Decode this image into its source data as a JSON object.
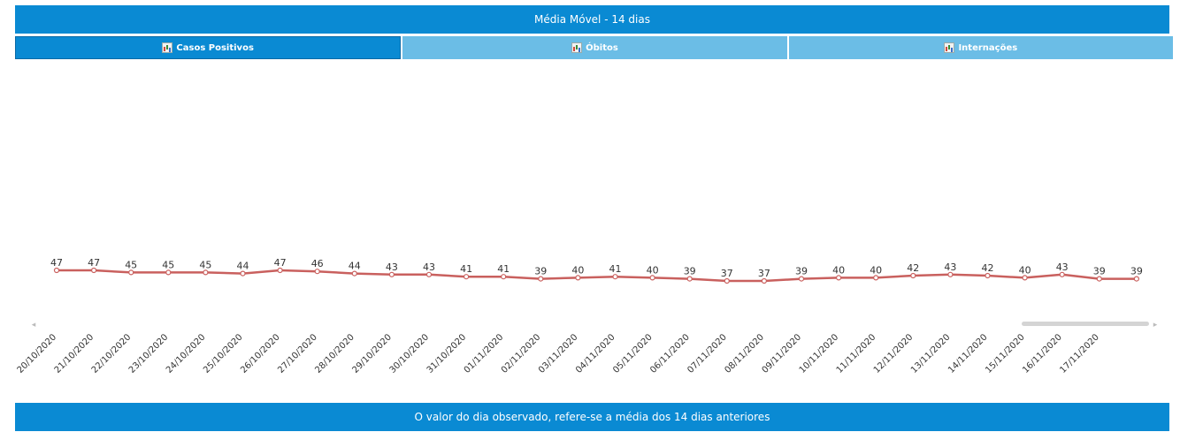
{
  "header": {
    "title": "Média Móvel - 14 dias"
  },
  "tabs": [
    {
      "label": "Casos Positivos",
      "icon": "bar-chart-icon",
      "active": true
    },
    {
      "label": "Óbitos",
      "icon": "bar-chart-icon",
      "active": false
    },
    {
      "label": "Internações",
      "icon": "bar-chart-icon",
      "active": false
    }
  ],
  "footer": {
    "text": "O valor do dia observado, refere-se a média dos 14 dias anteriores"
  },
  "colors": {
    "header_bg": "#0a8ad3",
    "tab_inactive": "#6bbde6",
    "line": "#c9605e"
  },
  "chart_data": {
    "type": "line",
    "title": "",
    "xlabel": "",
    "ylabel": "",
    "categories": [
      "20/10/2020",
      "21/10/2020",
      "22/10/2020",
      "23/10/2020",
      "24/10/2020",
      "25/10/2020",
      "26/10/2020",
      "27/10/2020",
      "28/10/2020",
      "29/10/2020",
      "30/10/2020",
      "31/10/2020",
      "01/11/2020",
      "02/11/2020",
      "03/11/2020",
      "04/11/2020",
      "05/11/2020",
      "06/11/2020",
      "07/11/2020",
      "08/11/2020",
      "09/11/2020",
      "10/11/2020",
      "11/11/2020",
      "12/11/2020",
      "13/11/2020",
      "14/11/2020",
      "15/11/2020",
      "16/11/2020",
      "17/11/2020",
      ""
    ],
    "series": [
      {
        "values": [
          47,
          47,
          45,
          45,
          45,
          44,
          47,
          46,
          44,
          43,
          43,
          41,
          41,
          39,
          40,
          41,
          40,
          39,
          37,
          37,
          39,
          40,
          40,
          42,
          43,
          42,
          40,
          43,
          39,
          39
        ]
      }
    ],
    "data_labels": true,
    "grid": false,
    "scrollbar": true
  }
}
